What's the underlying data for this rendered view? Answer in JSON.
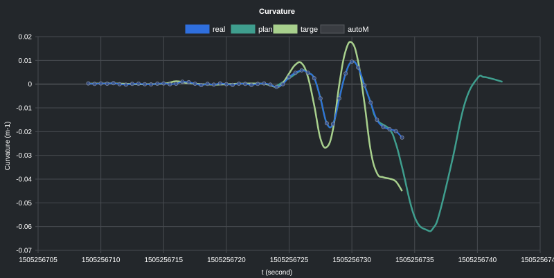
{
  "chart_data": {
    "type": "line",
    "title": "Curvature",
    "xlabel": "t (second)",
    "ylabel": "Curvature (m-1)",
    "xlim": [
      1505256705,
      1505256745
    ],
    "ylim": [
      -0.07,
      0.02
    ],
    "xticks": [
      "1505256705",
      "1505256710",
      "1505256715",
      "1505256720",
      "1505256725",
      "1505256730",
      "1505256735",
      "1505256740",
      "1505256745"
    ],
    "yticks": [
      "0.02",
      "0.01",
      "0",
      "-0.01",
      "-0.02",
      "-0.03",
      "-0.04",
      "-0.05",
      "-0.06",
      "-0.07"
    ],
    "grid": true,
    "legend_position": "top",
    "series": [
      {
        "name": "real",
        "color": "#2f6fde",
        "markers": true,
        "x": [
          1505256709.0,
          1505256709.5,
          1505256710.0,
          1505256710.5,
          1505256711.0,
          1505256711.5,
          1505256712.0,
          1505256712.5,
          1505256713.0,
          1505256713.5,
          1505256714.0,
          1505256714.5,
          1505256715.0,
          1505256715.5,
          1505256716.0,
          1505256716.5,
          1505256717.0,
          1505256717.5,
          1505256718.0,
          1505256718.5,
          1505256719.0,
          1505256719.5,
          1505256720.0,
          1505256720.5,
          1505256721.0,
          1505256721.5,
          1505256722.0,
          1505256722.5,
          1505256723.0,
          1505256723.5,
          1505256724.0,
          1505256724.5,
          1505256725.0,
          1505256725.5,
          1505256726.0,
          1505256726.5,
          1505256727.0,
          1505256727.5,
          1505256728.0,
          1505256728.5,
          1505256729.0,
          1505256729.5,
          1505256730.0,
          1505256730.5,
          1505256731.0,
          1505256731.5,
          1505256732.0,
          1505256732.5,
          1505256733.0,
          1505256733.5,
          1505256734.0
        ],
        "y": [
          0.0003,
          0.0001,
          0.0003,
          0.0002,
          0.0004,
          0.0,
          -0.0002,
          0.0001,
          0.0002,
          0.0,
          -0.0001,
          0.0002,
          0.0003,
          0.0,
          0.0002,
          0.001,
          0.0008,
          0.0002,
          -0.0004,
          0.0001,
          -0.0002,
          0.0003,
          0.0,
          -0.0003,
          0.0002,
          0.0001,
          -0.0003,
          0.0001,
          0.0003,
          -0.0002,
          -0.0012,
          0.0,
          0.003,
          0.0048,
          0.0058,
          0.0048,
          0.0025,
          -0.006,
          -0.0165,
          -0.0168,
          -0.006,
          0.0045,
          0.0095,
          0.007,
          -0.0005,
          -0.0078,
          -0.015,
          -0.018,
          -0.019,
          -0.0198,
          -0.0225
        ]
      },
      {
        "name": "plan",
        "color": "#3f9e8e",
        "markers": false,
        "x": [
          1505256724.0,
          1505256725.0,
          1505256726.0,
          1505256726.5,
          1505256727.0,
          1505256727.5,
          1505256728.0,
          1505256728.5,
          1505256729.0,
          1505256729.5,
          1505256730.0,
          1505256730.5,
          1505256731.0,
          1505256731.5,
          1505256732.0,
          1505256733.0,
          1505256733.5,
          1505256734.0,
          1505256735.0,
          1505256736.0,
          1505256736.5,
          1505256737.0,
          1505256738.0,
          1505256739.0,
          1505256740.0,
          1505256740.5,
          1505256741.0,
          1505256742.0
        ],
        "y": [
          -0.0008,
          0.0025,
          0.0058,
          0.0048,
          0.0025,
          -0.006,
          -0.0165,
          -0.0168,
          -0.006,
          0.0045,
          0.0095,
          0.007,
          -0.0005,
          -0.0078,
          -0.015,
          -0.019,
          -0.025,
          -0.035,
          -0.056,
          -0.0615,
          -0.0605,
          -0.054,
          -0.032,
          -0.008,
          0.0025,
          0.003,
          0.0025,
          0.001
        ]
      },
      {
        "name": "targe",
        "color": "#a8d08d",
        "markers": false,
        "x": [
          1505256709.0,
          1505256711.0,
          1505256713.0,
          1505256715.0,
          1505256716.0,
          1505256717.0,
          1505256719.0,
          1505256721.0,
          1505256723.0,
          1505256724.0,
          1505256724.5,
          1505256725.0,
          1505256725.5,
          1505256726.0,
          1505256726.5,
          1505256727.0,
          1505256727.5,
          1505256728.0,
          1505256728.5,
          1505256729.0,
          1505256729.5,
          1505256730.0,
          1505256730.5,
          1505256731.0,
          1505256731.5,
          1505256732.0,
          1505256732.5,
          1505256733.0,
          1505256733.5,
          1505256734.0
        ],
        "y": [
          0.0002,
          0.0003,
          0.0,
          0.0002,
          0.0012,
          0.0004,
          -0.0002,
          0.0002,
          0.0001,
          -0.0012,
          0.0005,
          0.0045,
          0.0082,
          0.0088,
          0.003,
          -0.009,
          -0.023,
          -0.0265,
          -0.019,
          0.0,
          0.014,
          0.0175,
          0.0095,
          -0.008,
          -0.028,
          -0.0375,
          -0.0392,
          -0.0398,
          -0.041,
          -0.045
        ]
      },
      {
        "name": "autoM",
        "color": "#3a3d42",
        "markers": false,
        "x": [],
        "y": []
      }
    ]
  }
}
